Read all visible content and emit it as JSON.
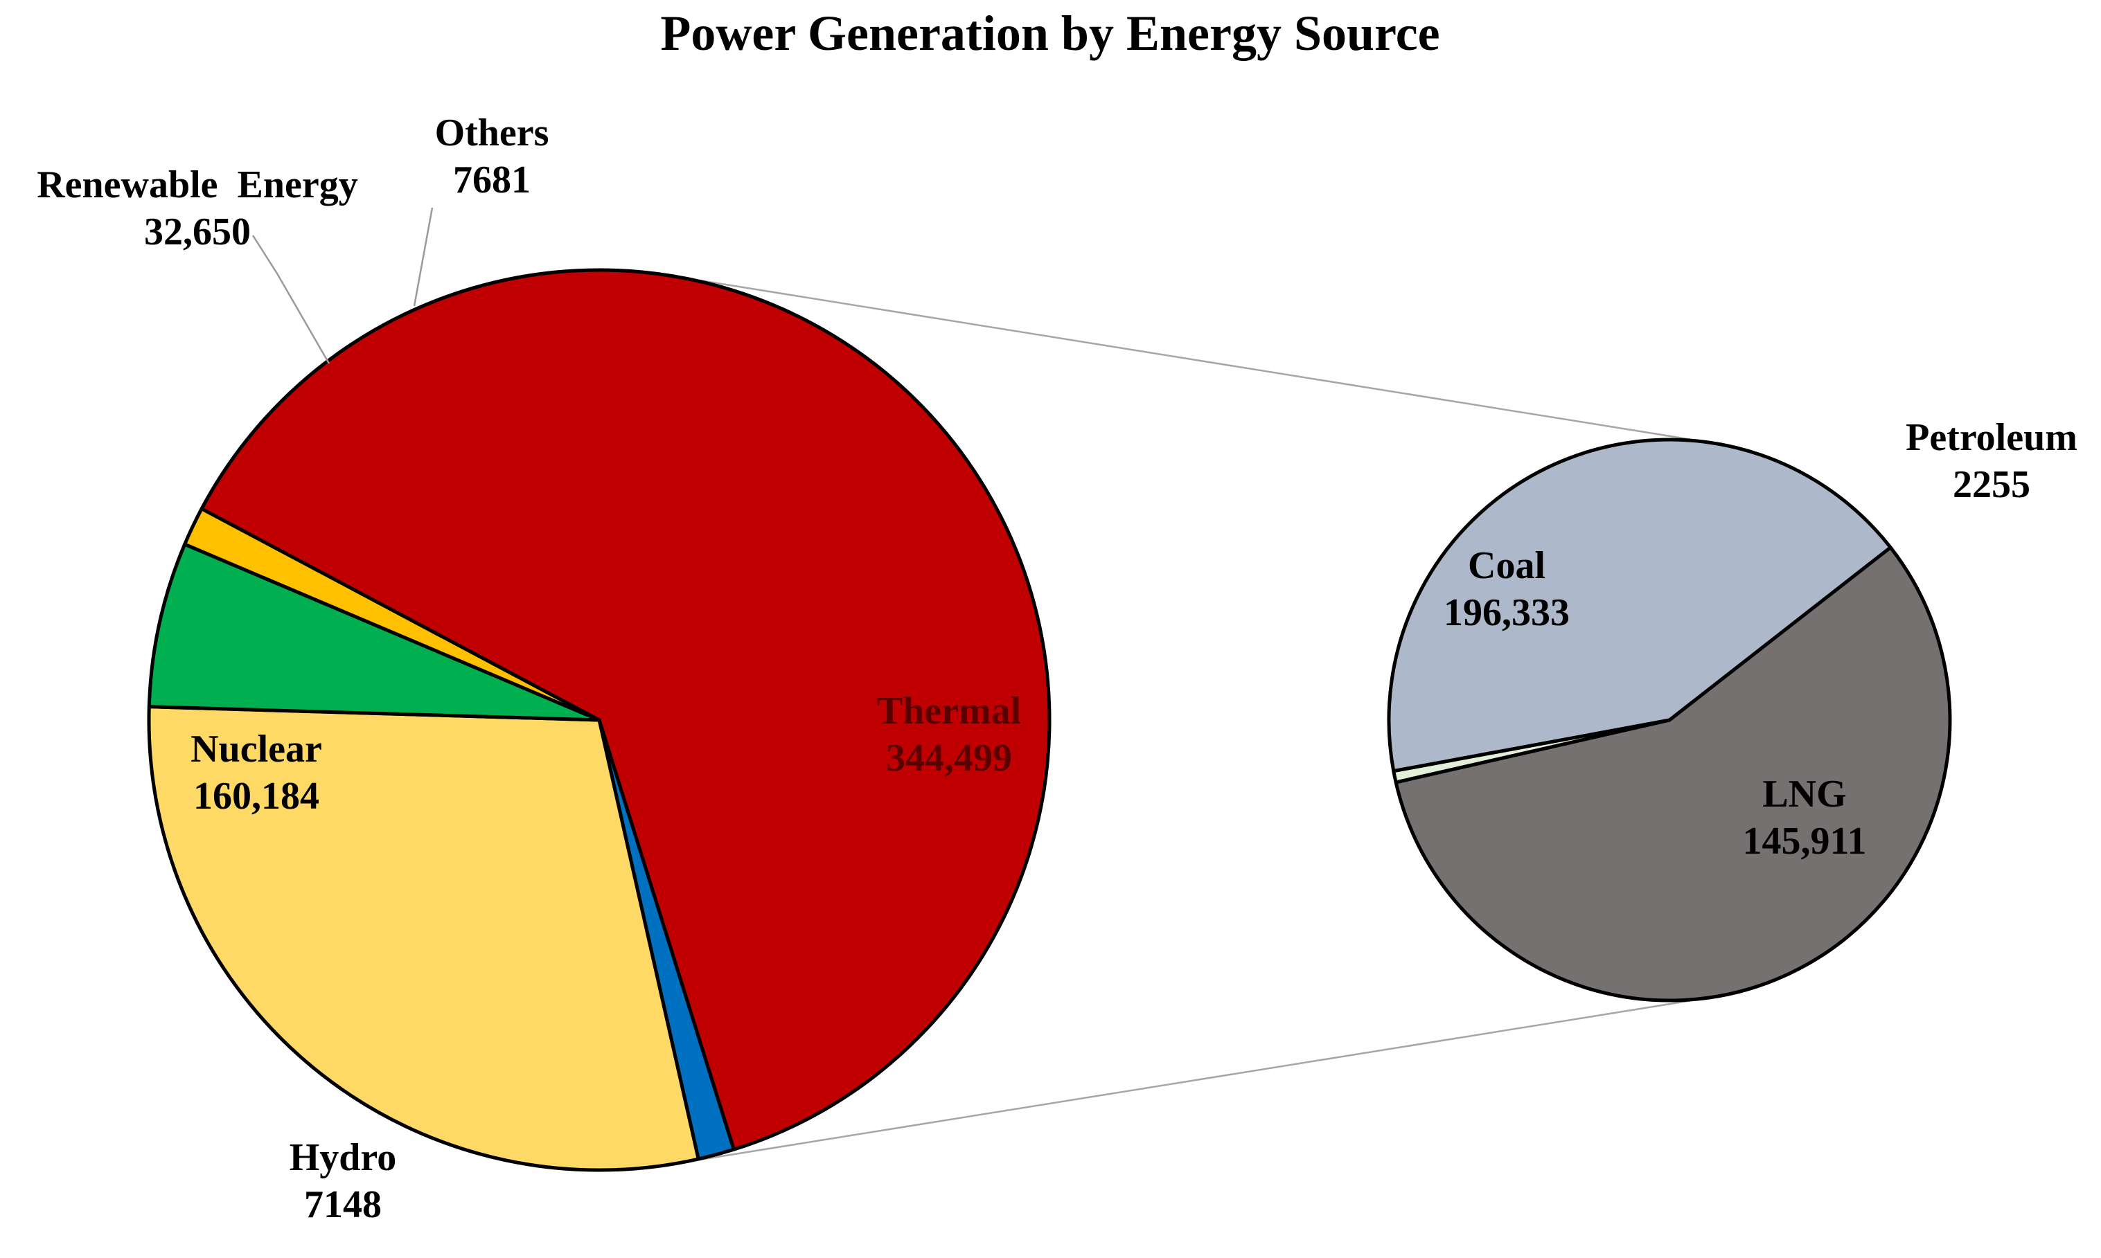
{
  "chart_data": {
    "type": "pie",
    "variant": "pie-of-pie",
    "title": "Power Generation by Energy Source",
    "main_pie": {
      "slices": [
        {
          "name": "Thermal",
          "value_label": "344,499",
          "value": 344499,
          "color": "#C00000",
          "text_color": "#5A0000"
        },
        {
          "name": "Hydro",
          "value_label": "7148",
          "value": 7148,
          "color": "#0070C0",
          "text_color": "#000000"
        },
        {
          "name": "Nuclear",
          "value_label": "160,184",
          "value": 160184,
          "color": "#FFD966",
          "text_color": "#000000"
        },
        {
          "name": "Renewable  Energy",
          "value_label": "32,650",
          "value": 32650,
          "color": "#00B050",
          "text_color": "#000000"
        },
        {
          "name": "Others",
          "value_label": "7681",
          "value": 7681,
          "color": "#FFC000",
          "text_color": "#000000"
        }
      ]
    },
    "secondary_pie": {
      "breakdown_of": "Thermal",
      "slices": [
        {
          "name": "Coal",
          "value_label": "196,333",
          "value": 196333,
          "color": "#767171",
          "text_color": "#000000"
        },
        {
          "name": "Petroleum",
          "value_label": "2255",
          "value": 2255,
          "color": "#E2F0D9",
          "text_color": "#000000"
        },
        {
          "name": "LNG",
          "value_label": "145,911",
          "value": 145911,
          "color": "#ADB9CA",
          "text_color": "#000000"
        }
      ]
    },
    "legend": "none",
    "data_labels": "name and value"
  }
}
